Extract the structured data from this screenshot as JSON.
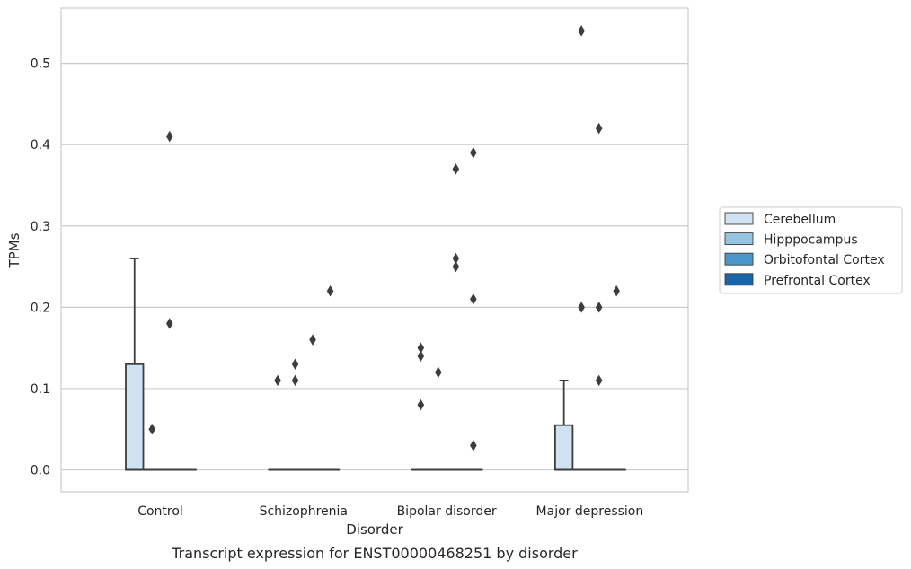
{
  "chart_data": {
    "type": "box",
    "xlabel": "Disorder",
    "ylabel": "TPMs",
    "caption": "Transcript expression for ENST00000468251 by disorder",
    "ylim": [
      -0.027,
      0.568
    ],
    "yticks": [
      "0.0",
      "0.1",
      "0.2",
      "0.3",
      "0.4",
      "0.5"
    ],
    "grid": "horizontal",
    "legend_position": "right",
    "categories": [
      "Control",
      "Schizophrenia",
      "Bipolar disorder",
      "Major depression"
    ],
    "series": [
      {
        "name": "Cerebellum",
        "color": "#d0e1f2",
        "boxes": [
          {
            "category": "Control",
            "whisker_low": 0.0,
            "q1": 0.0,
            "median": 0.0,
            "q3": 0.13,
            "whisker_high": 0.26,
            "outliers": []
          },
          {
            "category": "Schizophrenia",
            "whisker_low": 0.0,
            "q1": 0.0,
            "median": 0.0,
            "q3": 0.0,
            "whisker_high": 0.0,
            "outliers": [
              0.11
            ]
          },
          {
            "category": "Bipolar disorder",
            "whisker_low": 0.0,
            "q1": 0.0,
            "median": 0.0,
            "q3": 0.0,
            "whisker_high": 0.0,
            "outliers": [
              0.15,
              0.14,
              0.08
            ]
          },
          {
            "category": "Major depression",
            "whisker_low": 0.0,
            "q1": 0.0,
            "median": 0.0,
            "q3": 0.055,
            "whisker_high": 0.11,
            "outliers": []
          }
        ]
      },
      {
        "name": "Hipppocampus",
        "color": "#94c4df",
        "boxes": [
          {
            "category": "Control",
            "whisker_low": 0.0,
            "q1": 0.0,
            "median": 0.0,
            "q3": 0.0,
            "whisker_high": 0.0,
            "outliers": [
              0.05
            ]
          },
          {
            "category": "Schizophrenia",
            "whisker_low": 0.0,
            "q1": 0.0,
            "median": 0.0,
            "q3": 0.0,
            "whisker_high": 0.0,
            "outliers": [
              0.13,
              0.11
            ]
          },
          {
            "category": "Bipolar disorder",
            "whisker_low": 0.0,
            "q1": 0.0,
            "median": 0.0,
            "q3": 0.0,
            "whisker_high": 0.0,
            "outliers": [
              0.12
            ]
          },
          {
            "category": "Major depression",
            "whisker_low": 0.0,
            "q1": 0.0,
            "median": 0.0,
            "q3": 0.0,
            "whisker_high": 0.0,
            "outliers": [
              0.54,
              0.2
            ]
          }
        ]
      },
      {
        "name": "Orbitofontal Cortex",
        "color": "#4a98c9",
        "boxes": [
          {
            "category": "Control",
            "whisker_low": 0.0,
            "q1": 0.0,
            "median": 0.0,
            "q3": 0.0,
            "whisker_high": 0.0,
            "outliers": [
              0.41,
              0.18
            ]
          },
          {
            "category": "Schizophrenia",
            "whisker_low": 0.0,
            "q1": 0.0,
            "median": 0.0,
            "q3": 0.0,
            "whisker_high": 0.0,
            "outliers": [
              0.16
            ]
          },
          {
            "category": "Bipolar disorder",
            "whisker_low": 0.0,
            "q1": 0.0,
            "median": 0.0,
            "q3": 0.0,
            "whisker_high": 0.0,
            "outliers": [
              0.37,
              0.26,
              0.25
            ]
          },
          {
            "category": "Major depression",
            "whisker_low": 0.0,
            "q1": 0.0,
            "median": 0.0,
            "q3": 0.0,
            "whisker_high": 0.0,
            "outliers": [
              0.42,
              0.2,
              0.11
            ]
          }
        ]
      },
      {
        "name": "Prefrontal Cortex",
        "color": "#1764ab",
        "boxes": [
          {
            "category": "Control",
            "whisker_low": 0.0,
            "q1": 0.0,
            "median": 0.0,
            "q3": 0.0,
            "whisker_high": 0.0,
            "outliers": []
          },
          {
            "category": "Schizophrenia",
            "whisker_low": 0.0,
            "q1": 0.0,
            "median": 0.0,
            "q3": 0.0,
            "whisker_high": 0.0,
            "outliers": [
              0.22
            ]
          },
          {
            "category": "Bipolar disorder",
            "whisker_low": 0.0,
            "q1": 0.0,
            "median": 0.0,
            "q3": 0.0,
            "whisker_high": 0.0,
            "outliers": [
              0.39,
              0.21,
              0.03
            ]
          },
          {
            "category": "Major depression",
            "whisker_low": 0.0,
            "q1": 0.0,
            "median": 0.0,
            "q3": 0.0,
            "whisker_high": 0.0,
            "outliers": [
              0.22
            ]
          }
        ]
      }
    ]
  }
}
